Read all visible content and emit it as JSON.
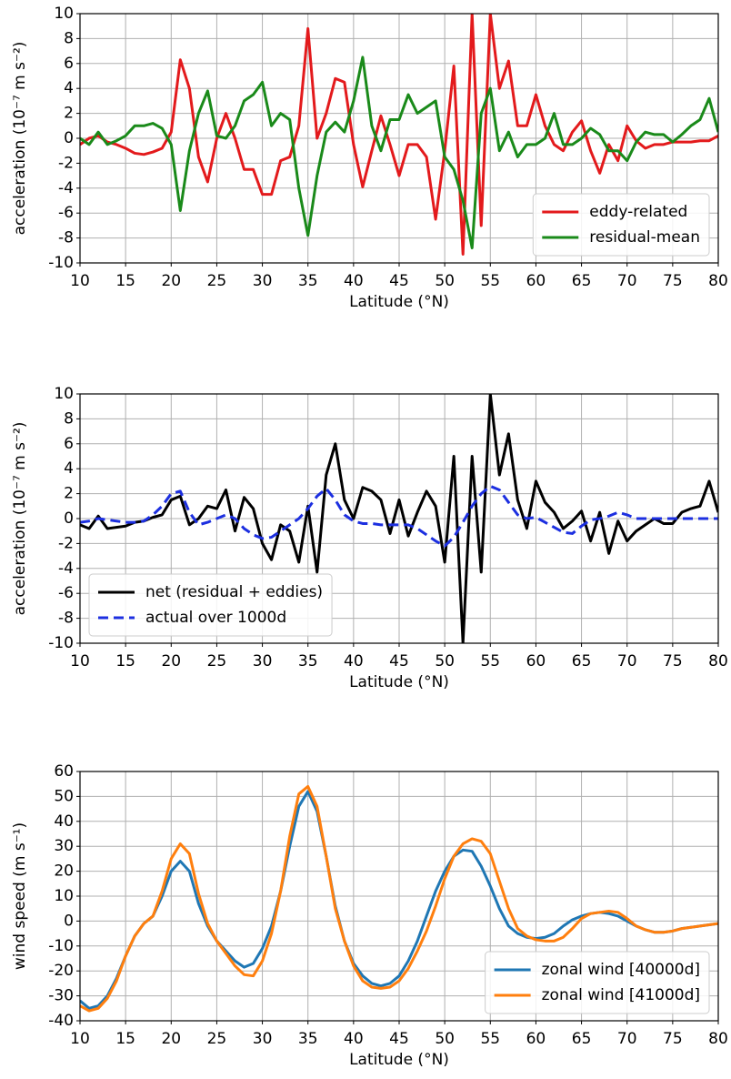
{
  "chart_data": [
    {
      "type": "line",
      "xlabel": "Latitude (°N)",
      "ylabel": "acceleration (10⁻⁷ m s⁻²)",
      "x": [
        10,
        11,
        12,
        13,
        14,
        15,
        16,
        17,
        18,
        19,
        20,
        21,
        22,
        23,
        24,
        25,
        26,
        27,
        28,
        29,
        30,
        31,
        32,
        33,
        34,
        35,
        36,
        37,
        38,
        39,
        40,
        41,
        42,
        43,
        44,
        45,
        46,
        47,
        48,
        49,
        50,
        51,
        52,
        53,
        54,
        55,
        56,
        57,
        58,
        59,
        60,
        61,
        62,
        63,
        64,
        65,
        66,
        67,
        68,
        69,
        70,
        71,
        72,
        73,
        74,
        75,
        76,
        77,
        78,
        79,
        80
      ],
      "xlim": [
        10,
        80
      ],
      "xticks": [
        10,
        15,
        20,
        25,
        30,
        35,
        40,
        45,
        50,
        55,
        60,
        65,
        70,
        75,
        80
      ],
      "ylim": [
        -10,
        10
      ],
      "yticks": [
        -10,
        -8,
        -6,
        -4,
        -2,
        0,
        2,
        4,
        6,
        8,
        10
      ],
      "grid": true,
      "legend": "lower right",
      "series": [
        {
          "name": "eddy-related",
          "color": "#e31a1c",
          "style": "solid",
          "values": [
            -0.5,
            0,
            0.2,
            -0.3,
            -0.5,
            -0.8,
            -1.2,
            -1.3,
            -1.1,
            -0.8,
            0.5,
            6.3,
            4,
            -1.5,
            -3.5,
            0,
            2,
            0,
            -2.5,
            -2.5,
            -4.5,
            -4.5,
            -1.8,
            -1.5,
            1,
            8.8,
            0,
            2,
            4.8,
            4.5,
            -0.5,
            -3.9,
            -1,
            1.8,
            -0.5,
            -3,
            -0.5,
            -0.5,
            -1.5,
            -6.5,
            -1,
            5.8,
            -9.3,
            10,
            -7,
            10,
            4,
            6.2,
            1,
            1,
            3.5,
            1,
            -0.5,
            -1,
            0.5,
            1.4,
            -1,
            -2.8,
            -0.5,
            -1.8,
            1,
            -0.2,
            -0.8,
            -0.5,
            -0.5,
            -0.3,
            -0.3,
            -0.3,
            -0.2,
            -0.2,
            0.2
          ]
        },
        {
          "name": "residual-mean",
          "color": "#1a8a1a",
          "style": "solid",
          "values": [
            0,
            -0.5,
            0.5,
            -0.5,
            -0.2,
            0.2,
            1,
            1,
            1.2,
            0.8,
            -0.5,
            -5.8,
            -1,
            2,
            3.8,
            0.2,
            0,
            1,
            3,
            3.5,
            4.5,
            1,
            2,
            1.5,
            -4,
            -7.8,
            -3,
            0.5,
            1.3,
            0.5,
            3,
            6.5,
            1,
            -1,
            1.5,
            1.5,
            3.5,
            2,
            2.5,
            3,
            -1.5,
            -2.5,
            -5,
            -8.8,
            2,
            4,
            -1,
            0.5,
            -1.5,
            -0.5,
            -0.5,
            0,
            2,
            -0.5,
            -0.5,
            0,
            0.8,
            0.3,
            -1,
            -1,
            -1.8,
            -0.3,
            0.5,
            0.3,
            0.3,
            -0.3,
            0.3,
            1,
            1.5,
            3.2,
            0.5
          ]
        }
      ]
    },
    {
      "type": "line",
      "xlabel": "Latitude (°N)",
      "ylabel": "acceleration (10⁻⁷ m s⁻²)",
      "x": [
        10,
        11,
        12,
        13,
        14,
        15,
        16,
        17,
        18,
        19,
        20,
        21,
        22,
        23,
        24,
        25,
        26,
        27,
        28,
        29,
        30,
        31,
        32,
        33,
        34,
        35,
        36,
        37,
        38,
        39,
        40,
        41,
        42,
        43,
        44,
        45,
        46,
        47,
        48,
        49,
        50,
        51,
        52,
        53,
        54,
        55,
        56,
        57,
        58,
        59,
        60,
        61,
        62,
        63,
        64,
        65,
        66,
        67,
        68,
        69,
        70,
        71,
        72,
        73,
        74,
        75,
        76,
        77,
        78,
        79,
        80
      ],
      "xlim": [
        10,
        80
      ],
      "xticks": [
        10,
        15,
        20,
        25,
        30,
        35,
        40,
        45,
        50,
        55,
        60,
        65,
        70,
        75,
        80
      ],
      "ylim": [
        -10,
        10
      ],
      "yticks": [
        -10,
        -8,
        -6,
        -4,
        -2,
        0,
        2,
        4,
        6,
        8,
        10
      ],
      "grid": true,
      "legend": "lower left",
      "series": [
        {
          "name": "net (residual + eddies)",
          "color": "#000000",
          "style": "solid",
          "values": [
            -0.5,
            -0.8,
            0.2,
            -0.8,
            -0.7,
            -0.6,
            -0.3,
            -0.2,
            0.1,
            0.3,
            1.5,
            1.8,
            -0.5,
            0,
            1,
            0.8,
            2.3,
            -1,
            1.7,
            0.8,
            -2,
            -3.3,
            -0.5,
            -1,
            -3.5,
            1,
            -4.3,
            3.5,
            6,
            1.5,
            0,
            2.5,
            2.2,
            1.5,
            -1.2,
            1.5,
            -1.4,
            0.5,
            2.2,
            1,
            -3.5,
            5,
            -10,
            5,
            -4.3,
            10,
            3.5,
            6.8,
            1.5,
            -0.8,
            3,
            1.3,
            0.5,
            -0.8,
            -0.2,
            0.6,
            -1.8,
            0.5,
            -2.8,
            -0.2,
            -1.8,
            -1,
            -0.5,
            0,
            -0.4,
            -0.4,
            0.5,
            0.8,
            1,
            3,
            0.5
          ]
        },
        {
          "name": "actual over 1000d",
          "color": "#1c2fe0",
          "style": "dashed",
          "values": [
            -0.3,
            -0.2,
            0,
            -0.1,
            -0.2,
            -0.3,
            -0.3,
            -0.2,
            0.3,
            1,
            2,
            2.2,
            0.5,
            -0.5,
            -0.3,
            0,
            0.3,
            0,
            -0.8,
            -1.3,
            -1.6,
            -1.5,
            -1,
            -0.5,
            0,
            0.8,
            1.8,
            2.4,
            1.5,
            0.3,
            -0.2,
            -0.4,
            -0.4,
            -0.5,
            -0.5,
            -0.5,
            -0.5,
            -0.8,
            -1.3,
            -1.8,
            -2.2,
            -1.5,
            -0.3,
            1,
            2,
            2.6,
            2.3,
            1.3,
            0.3,
            0,
            0.1,
            -0.3,
            -0.7,
            -1.1,
            -1.2,
            -0.6,
            -0.1,
            0,
            0.2,
            0.5,
            0.3,
            0,
            0,
            0,
            0,
            0,
            0,
            0,
            0,
            0,
            0
          ]
        }
      ]
    },
    {
      "type": "line",
      "xlabel": "Latitude (°N)",
      "ylabel": "wind speed (m s⁻¹)",
      "x": [
        10,
        11,
        12,
        13,
        14,
        15,
        16,
        17,
        18,
        19,
        20,
        21,
        22,
        23,
        24,
        25,
        26,
        27,
        28,
        29,
        30,
        31,
        32,
        33,
        34,
        35,
        36,
        37,
        38,
        39,
        40,
        41,
        42,
        43,
        44,
        45,
        46,
        47,
        48,
        49,
        50,
        51,
        52,
        53,
        54,
        55,
        56,
        57,
        58,
        59,
        60,
        61,
        62,
        63,
        64,
        65,
        66,
        67,
        68,
        69,
        70,
        71,
        72,
        73,
        74,
        75,
        76,
        77,
        78,
        79,
        80
      ],
      "xlim": [
        10,
        80
      ],
      "xticks": [
        10,
        15,
        20,
        25,
        30,
        35,
        40,
        45,
        50,
        55,
        60,
        65,
        70,
        75,
        80
      ],
      "ylim": [
        -40,
        60
      ],
      "yticks": [
        -40,
        -30,
        -20,
        -10,
        0,
        10,
        20,
        30,
        40,
        50,
        60
      ],
      "grid": true,
      "legend": "lower right",
      "series": [
        {
          "name": "zonal wind [40000d]",
          "color": "#1f77b4",
          "style": "solid",
          "values": [
            -32,
            -35,
            -34,
            -30,
            -23,
            -14,
            -6,
            -1,
            2,
            10,
            20,
            24,
            20,
            7,
            -2,
            -8,
            -12,
            -16,
            -18.5,
            -17,
            -11,
            -2,
            12,
            30,
            46,
            52,
            44,
            26,
            6,
            -8,
            -17,
            -22,
            -25,
            -26,
            -25,
            -22,
            -16,
            -8,
            2,
            12,
            20,
            26,
            28.5,
            28,
            22,
            14,
            5,
            -2,
            -5,
            -6.5,
            -7,
            -6.5,
            -5,
            -2,
            0.5,
            2,
            3,
            3.5,
            3,
            2,
            0,
            -2,
            -3.5,
            -4.5,
            -4.5,
            -4,
            -3,
            -2.5,
            -2,
            -1.5,
            -1
          ]
        },
        {
          "name": "zonal wind [41000d]",
          "color": "#ff7f0e",
          "style": "solid",
          "values": [
            -34,
            -36,
            -35,
            -31,
            -24,
            -14,
            -6,
            -1,
            2,
            12,
            25,
            31,
            27,
            11,
            -1,
            -8,
            -13,
            -18,
            -21.5,
            -22,
            -16,
            -5,
            12,
            34,
            51,
            54,
            46,
            26,
            5,
            -8,
            -18,
            -24,
            -26.5,
            -27,
            -26.5,
            -24,
            -19,
            -12,
            -4,
            6,
            17,
            26,
            31,
            33,
            32,
            27,
            16,
            5,
            -3,
            -6,
            -7.5,
            -8,
            -8,
            -6.5,
            -3,
            1,
            3,
            3.5,
            4,
            3.5,
            1,
            -2,
            -3.5,
            -4.5,
            -4.5,
            -4,
            -3,
            -2.5,
            -2,
            -1.5,
            -1
          ]
        }
      ]
    }
  ]
}
